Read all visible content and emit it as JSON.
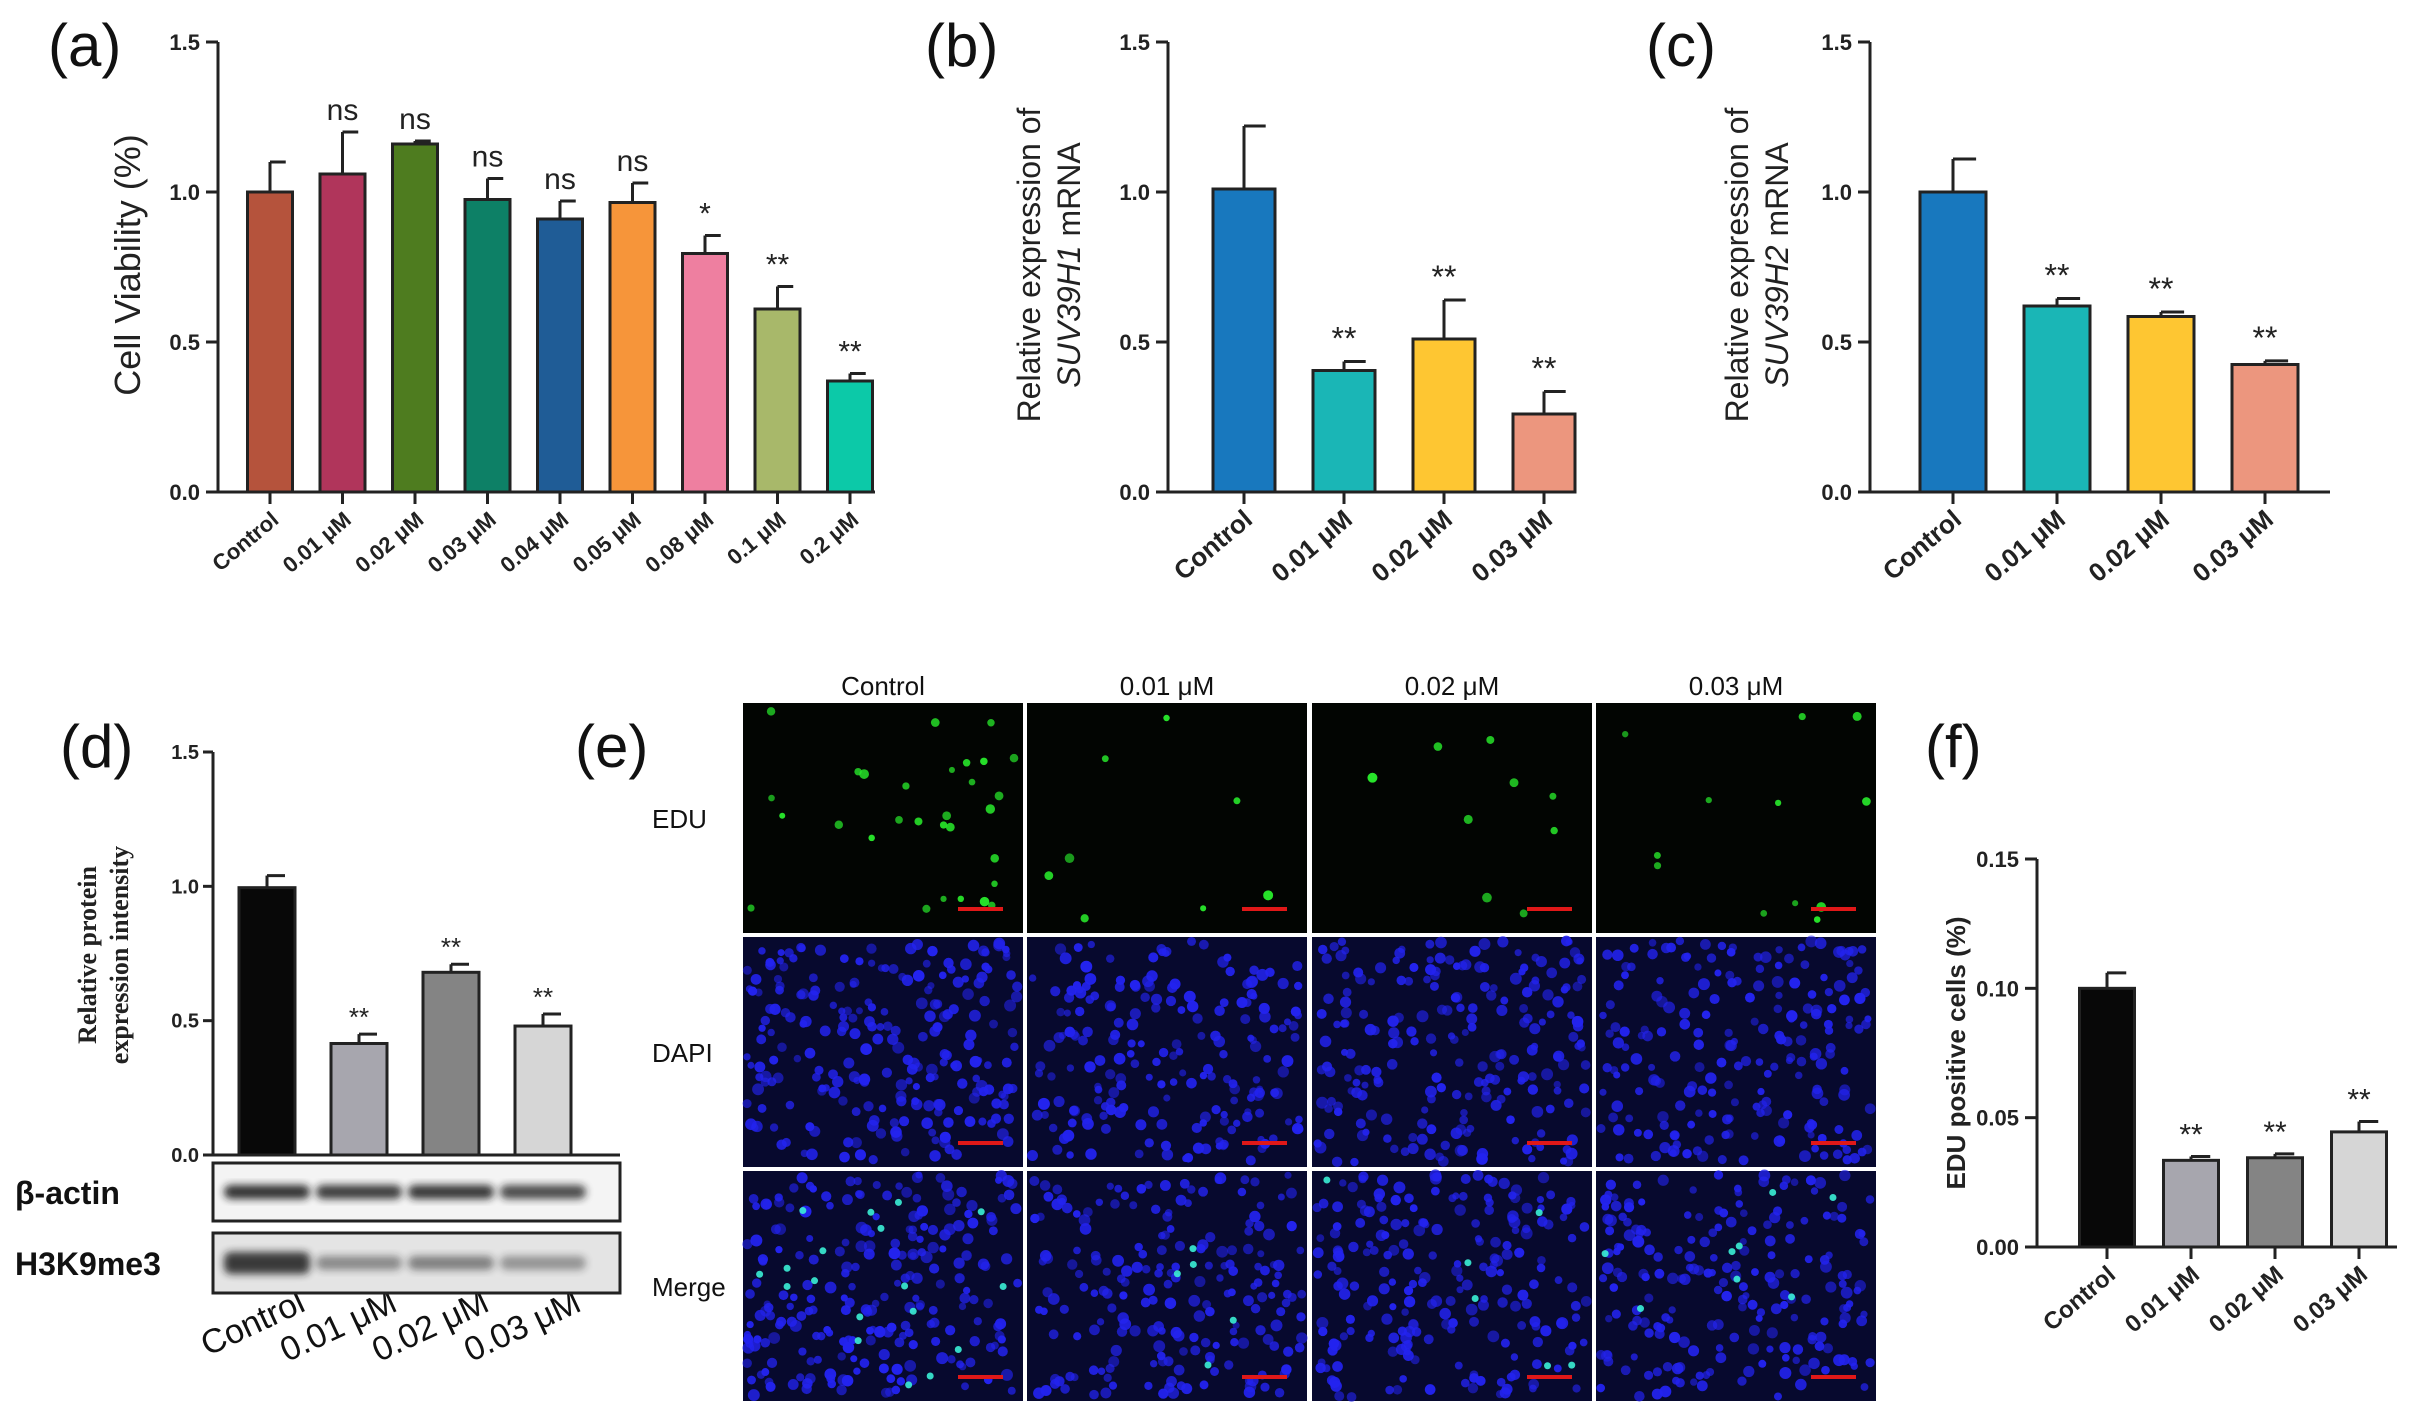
{
  "figure": {
    "panels": {
      "a": {
        "letter": "(a)"
      },
      "b": {
        "letter": "(b)"
      },
      "c": {
        "letter": "(c)"
      },
      "d": {
        "letter": "(d)"
      },
      "e": {
        "letter": "(e)"
      },
      "f": {
        "letter": "(f)"
      }
    }
  },
  "chart_data": [
    {
      "id": "a",
      "type": "bar",
      "ylabel": "Cell Viability (%)",
      "ylim": [
        0,
        1.5
      ],
      "yticks": [
        "0.0",
        "0.5",
        "1.0",
        "1.5"
      ],
      "categories": [
        "Control",
        "0.01 μM",
        "0.02 μM",
        "0.03 μM",
        "0.04 μM",
        "0.05 μM",
        "0.08 μM",
        "0.1 μM",
        "0.2 μM"
      ],
      "values": [
        1.0,
        1.06,
        1.16,
        0.975,
        0.91,
        0.965,
        0.795,
        0.61,
        0.37
      ],
      "errors": [
        0.1,
        0.14,
        0.01,
        0.07,
        0.06,
        0.065,
        0.06,
        0.075,
        0.025
      ],
      "significance": [
        "",
        "ns",
        "ns",
        "ns",
        "ns",
        "ns",
        "*",
        "**",
        "**"
      ],
      "colors": [
        "#b5533c",
        "#b0355b",
        "#4e7c1f",
        "#0d8066",
        "#1f5c96",
        "#f6953a",
        "#ee7fa0",
        "#a8b86a",
        "#0cc9a8"
      ]
    },
    {
      "id": "b",
      "type": "bar",
      "ylabel": "Relative expression of",
      "ylabel2_gene": "SUV39H1",
      "ylabel2_suffix": " mRNA",
      "ylim": [
        0,
        1.5
      ],
      "yticks": [
        "0.0",
        "0.5",
        "1.0",
        "1.5"
      ],
      "categories": [
        "Control",
        "0.01 μM",
        "0.02 μM",
        "0.03 μM"
      ],
      "values": [
        1.01,
        0.405,
        0.51,
        0.26
      ],
      "errors": [
        0.21,
        0.03,
        0.13,
        0.075
      ],
      "significance": [
        "",
        "**",
        "**",
        "**"
      ],
      "colors": [
        "#1878be",
        "#1ab6b6",
        "#fec632",
        "#ec967e"
      ]
    },
    {
      "id": "c",
      "type": "bar",
      "ylabel": "Relative expression of",
      "ylabel2_gene": "SUV39H2",
      "ylabel2_suffix": " mRNA",
      "ylim": [
        0,
        1.5
      ],
      "yticks": [
        "0.0",
        "0.5",
        "1.0",
        "1.5"
      ],
      "categories": [
        "Control",
        "0.01 μM",
        "0.02 μM",
        "0.03 μM"
      ],
      "values": [
        1.0,
        0.62,
        0.585,
        0.425
      ],
      "errors": [
        0.11,
        0.025,
        0.015,
        0.012
      ],
      "significance": [
        "",
        "**",
        "**",
        "**"
      ],
      "colors": [
        "#1878be",
        "#1ab6b6",
        "#fec632",
        "#ec967e"
      ]
    },
    {
      "id": "d",
      "type": "bar",
      "ylabel": "Relative protein",
      "ylabel2": "expression intensity",
      "ylim": [
        0,
        1.5
      ],
      "yticks": [
        "0.0",
        "0.5",
        "1.0",
        "1.5"
      ],
      "categories": [
        "Control",
        "0.01 μM",
        "0.02 μM",
        "0.03 μM"
      ],
      "values": [
        0.995,
        0.415,
        0.68,
        0.48
      ],
      "errors": [
        0.045,
        0.035,
        0.03,
        0.045
      ],
      "significance": [
        "",
        "**",
        "**",
        "**"
      ],
      "colors": [
        "#080808",
        "#a7a6ae",
        "#848484",
        "#d6d6d6"
      ],
      "blot_rows": [
        "β-actin",
        "H3K9me3"
      ]
    },
    {
      "id": "e",
      "type": "image-grid",
      "columns": [
        "Control",
        "0.01 μM",
        "0.02 μM",
        "0.03 μM"
      ],
      "rows": [
        "EDU",
        "DAPI",
        "Merge"
      ]
    },
    {
      "id": "f",
      "type": "bar",
      "ylabel": "EDU positive cells (%)",
      "ylim": [
        0,
        0.15
      ],
      "yticks": [
        "0.00",
        "0.05",
        "0.10",
        "0.15"
      ],
      "categories": [
        "Control",
        "0.01 μM",
        "0.02 μM",
        "0.03 μM"
      ],
      "values": [
        0.1,
        0.0335,
        0.0345,
        0.0445
      ],
      "errors": [
        0.006,
        0.0015,
        0.0015,
        0.004
      ],
      "significance": [
        "",
        "**",
        "**",
        "**"
      ],
      "colors": [
        "#080808",
        "#a7a6ae",
        "#848484",
        "#d6d6d6"
      ]
    }
  ]
}
